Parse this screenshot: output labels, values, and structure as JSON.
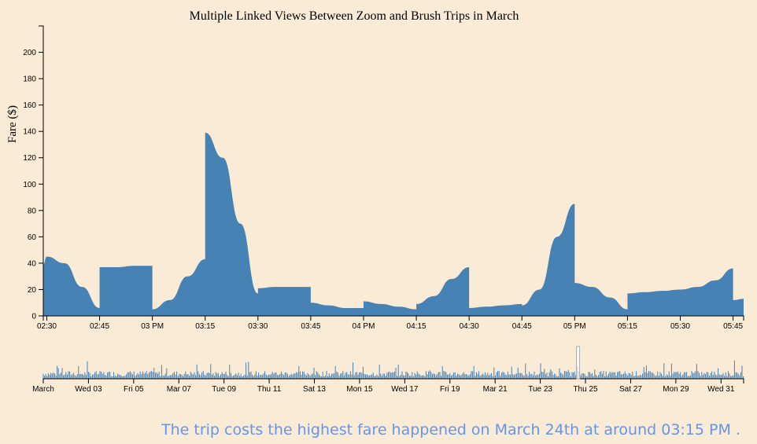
{
  "chart_data": [
    {
      "type": "area",
      "title": "Multiple Linked Views Between Zoom and Brush Trips in March",
      "xlabel": "",
      "ylabel": "Fare ($)",
      "ylim": [
        0,
        220
      ],
      "yticks": [
        0,
        20,
        40,
        60,
        80,
        100,
        120,
        140,
        160,
        180,
        200
      ],
      "x_ticks": [
        "02:30",
        "02:45",
        "03 PM",
        "03:15",
        "03:30",
        "03:45",
        "04 PM",
        "04:15",
        "04:30",
        "04:45",
        "05 PM",
        "05:15",
        "05:30",
        "05:45"
      ],
      "x": [
        "14:29",
        "14:30",
        "14:35",
        "14:40",
        "14:45",
        "14:45",
        "14:50",
        "14:55",
        "15:00",
        "15:00",
        "15:05",
        "15:10",
        "15:15",
        "15:15",
        "15:20",
        "15:25",
        "15:30",
        "15:30",
        "15:35",
        "15:40",
        "15:45",
        "15:45",
        "15:50",
        "15:55",
        "16:00",
        "16:00",
        "16:05",
        "16:10",
        "16:15",
        "16:15",
        "16:20",
        "16:25",
        "16:30",
        "16:30",
        "16:35",
        "16:40",
        "16:45",
        "16:45",
        "16:50",
        "16:55",
        "17:00",
        "17:00",
        "17:05",
        "17:10",
        "17:15",
        "17:15",
        "17:20",
        "17:25",
        "17:30",
        "17:30",
        "17:35",
        "17:40",
        "17:45",
        "17:45",
        "17:48"
      ],
      "values": [
        39,
        45,
        40,
        22,
        6,
        37,
        37,
        38,
        38,
        5,
        12,
        30,
        43,
        139,
        120,
        70,
        17,
        21,
        22,
        22,
        22,
        10,
        8,
        6,
        6,
        11,
        9,
        7,
        5,
        9,
        15,
        28,
        37,
        6,
        7,
        8,
        9,
        8,
        20,
        60,
        85,
        25,
        22,
        14,
        5,
        17,
        18,
        19,
        20,
        20,
        22,
        27,
        36,
        12,
        13
      ],
      "color": "#4682b4"
    },
    {
      "type": "area",
      "title": "",
      "x_ticks": [
        "March",
        "Wed 03",
        "Fri 05",
        "Mar 07",
        "Tue 09",
        "Thu 11",
        "Sat 13",
        "Mon 15",
        "Wed 17",
        "Fri 19",
        "Mar 21",
        "Tue 23",
        "Thu 25",
        "Sat 27",
        "Mon 29",
        "Wed 31"
      ],
      "x_range": [
        "March 1",
        "April 1"
      ],
      "brush": [
        "March 24 14:29",
        "March 24 17:48"
      ],
      "color": "#4682b4"
    }
  ],
  "caption": "The trip costs the highest fare happened on March 24th at around 03:15 PM ."
}
